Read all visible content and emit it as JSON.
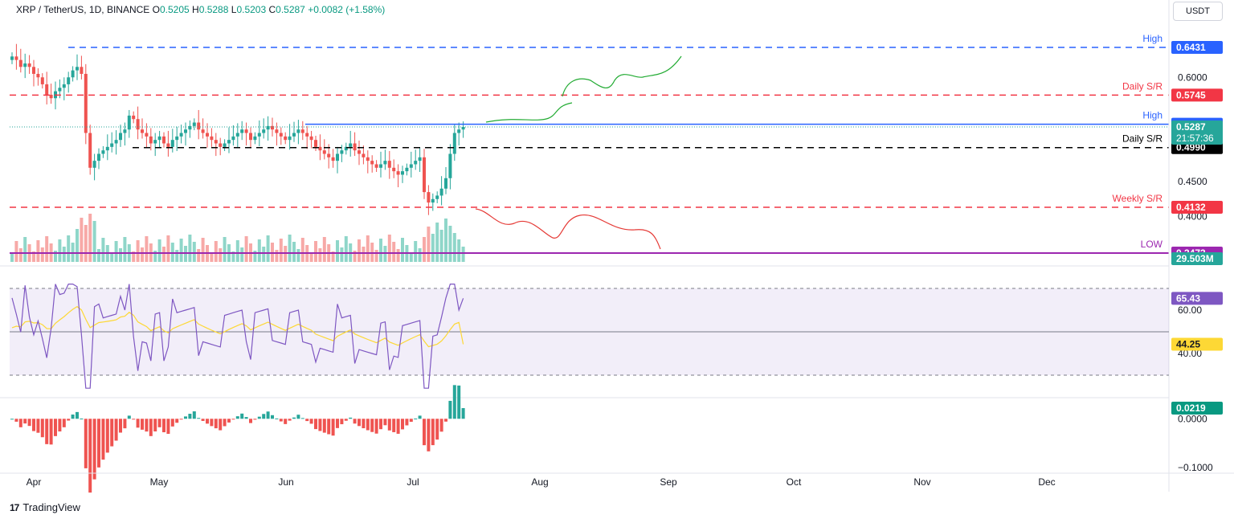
{
  "header": {
    "symbol": "XRP / TetherUS, 1D, BINANCE",
    "o_label": "O",
    "o": "0.5205",
    "h_label": "H",
    "h": "0.5288",
    "l_label": "L",
    "l": "0.5203",
    "c_label": "C",
    "c": "0.5287",
    "change": "+0.0082 (+1.58%)"
  },
  "currency": "USDT",
  "brand": "TradingView",
  "brand_logo": "17",
  "colors": {
    "up": "#26a69a",
    "down": "#ef5350",
    "blue": "#2962ff",
    "red": "#f23645",
    "purple": "#9c27b0",
    "rsi": "#7e57c2",
    "rsi_ma": "#fdd835",
    "projection_up": "#22ab33",
    "projection_down": "#e53935"
  },
  "chart_data": [
    {
      "type": "candlestick",
      "name": "price",
      "x_labels": [
        "Apr",
        "May",
        "Jun",
        "Jul",
        "Aug",
        "Sep",
        "Oct",
        "Nov",
        "Dec"
      ],
      "y_ticks": [
        "0.6000",
        "0.4500",
        "0.4000"
      ],
      "ylim": [
        0.33,
        0.665
      ],
      "current_price": {
        "value": 0.5287,
        "label": "0.5287",
        "countdown": "21:57:36"
      },
      "levels": [
        {
          "label": "High",
          "value": 0.6431,
          "tag": "0.6431",
          "style": "dashed",
          "color": "#2962ff"
        },
        {
          "label": "Daily S/R",
          "value": 0.5745,
          "tag": "0.5745",
          "style": "dashed",
          "color": "#f23645"
        },
        {
          "label": "High",
          "value": 0.5326,
          "tag": "0.5326",
          "style": "solid",
          "color": "#2962ff"
        },
        {
          "label": "Daily S/R",
          "value": 0.499,
          "tag": "0.4990",
          "style": "dashed",
          "color": "#000000"
        },
        {
          "label": "Weekly S/R",
          "value": 0.4132,
          "tag": "0.4132",
          "style": "dashed",
          "color": "#f23645"
        },
        {
          "label": "LOW",
          "value": 0.3473,
          "tag": "0.3473",
          "style": "solid",
          "color": "#9c27b0"
        }
      ],
      "closes": [
        0.63,
        0.625,
        0.615,
        0.62,
        0.615,
        0.605,
        0.6,
        0.59,
        0.575,
        0.57,
        0.58,
        0.585,
        0.59,
        0.6,
        0.61,
        0.615,
        0.605,
        0.52,
        0.47,
        0.48,
        0.49,
        0.495,
        0.5,
        0.505,
        0.51,
        0.52,
        0.525,
        0.545,
        0.54,
        0.525,
        0.52,
        0.515,
        0.505,
        0.51,
        0.515,
        0.505,
        0.5,
        0.51,
        0.515,
        0.52,
        0.525,
        0.53,
        0.535,
        0.525,
        0.52,
        0.515,
        0.51,
        0.505,
        0.5,
        0.505,
        0.51,
        0.515,
        0.52,
        0.525,
        0.52,
        0.51,
        0.515,
        0.52,
        0.525,
        0.53,
        0.525,
        0.52,
        0.515,
        0.51,
        0.515,
        0.52,
        0.525,
        0.52,
        0.515,
        0.51,
        0.5,
        0.495,
        0.49,
        0.485,
        0.48,
        0.49,
        0.495,
        0.5,
        0.505,
        0.495,
        0.49,
        0.485,
        0.48,
        0.475,
        0.47,
        0.475,
        0.48,
        0.47,
        0.465,
        0.46,
        0.465,
        0.47,
        0.475,
        0.48,
        0.485,
        0.435,
        0.42,
        0.425,
        0.43,
        0.44,
        0.455,
        0.49,
        0.52,
        0.525,
        0.5287
      ],
      "volume": {
        "tag": "29.503M"
      }
    },
    {
      "type": "line",
      "name": "rsi",
      "y_ticks": [
        "60.00",
        "40.00"
      ],
      "ylim": [
        20,
        80
      ],
      "bands": [
        30,
        50,
        70
      ],
      "series": [
        {
          "name": "",
          "tag": "65.43",
          "last": 65.43
        },
        {
          "name": "",
          "tag": "44.25",
          "last": 44.25
        }
      ]
    },
    {
      "type": "bar",
      "name": "oscillator",
      "y_ticks": [
        "0.0000",
        "−0.1000"
      ],
      "ylim": [
        -0.11,
        0.04
      ],
      "tag": "0.0219",
      "last": 0.0219
    }
  ]
}
